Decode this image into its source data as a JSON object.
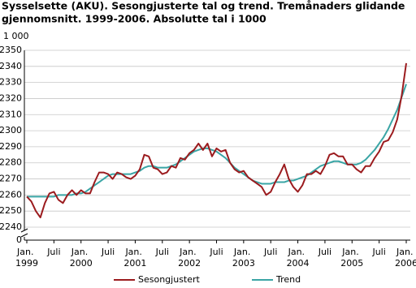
{
  "chart_data": {
    "type": "line",
    "title": [
      "Sysselsette (AKU).  Sesongjusterte tal og trend. Tremånaders glidande",
      "gjennomsnitt. 1999-2006. Absolutte tal i 1000"
    ],
    "y_unit": "1 000",
    "categories": [
      "Jan. 1999",
      null,
      null,
      null,
      null,
      null,
      "Juli",
      null,
      null,
      null,
      null,
      null,
      "Jan. 2000",
      null,
      null,
      null,
      null,
      null,
      "Juli",
      null,
      null,
      null,
      null,
      null,
      "Jan. 2001",
      null,
      null,
      null,
      null,
      null,
      "Juli",
      null,
      null,
      null,
      null,
      null,
      "Jan. 2002",
      null,
      null,
      null,
      null,
      null,
      "Juli",
      null,
      null,
      null,
      null,
      null,
      "Jan. 2003",
      null,
      null,
      null,
      null,
      null,
      "Juli",
      null,
      null,
      null,
      null,
      null,
      "Jan. 2004",
      null,
      null,
      null,
      null,
      null,
      "Juli",
      null,
      null,
      null,
      null,
      null,
      "Jan. 2005",
      null,
      null,
      null,
      null,
      null,
      "Juli",
      null,
      null,
      null,
      null,
      null,
      "Jan. 2006"
    ],
    "series": [
      {
        "name": "Sesongjustert",
        "color": "#9b1b1e",
        "values": [
          2259,
          2256,
          2250,
          2246,
          2255,
          2261,
          2262,
          2257,
          2255,
          2260,
          2263,
          2260,
          2263,
          2261,
          2261,
          2268,
          2274,
          2274,
          2273,
          2270,
          2274,
          2273,
          2271,
          2270,
          2272,
          2276,
          2285,
          2284,
          2277,
          2276,
          2273,
          2274,
          2278,
          2277,
          2283,
          2282,
          2286,
          2288,
          2292,
          2288,
          2292,
          2284,
          2289,
          2287,
          2288,
          2280,
          2276,
          2274,
          2275,
          2271,
          2269,
          2267,
          2265,
          2260,
          2262,
          2268,
          2273,
          2279,
          2270,
          2265,
          2262,
          2266,
          2273,
          2273,
          2275,
          2273,
          2278,
          2285,
          2286,
          2284,
          2284,
          2279,
          2279,
          2276,
          2274,
          2278,
          2278,
          2283,
          2287,
          2293,
          2294,
          2299,
          2307,
          2322,
          2342
        ]
      },
      {
        "name": "Trend",
        "color": "#3aa5a5",
        "values": [
          2259,
          2259,
          2259,
          2259,
          2259,
          2259,
          2259,
          2260,
          2260,
          2260,
          2260,
          2261,
          2261,
          2262,
          2264,
          2266,
          2268,
          2270,
          2272,
          2273,
          2273,
          2273,
          2273,
          2273,
          2274,
          2275,
          2277,
          2278,
          2278,
          2277,
          2277,
          2277,
          2278,
          2279,
          2281,
          2283,
          2285,
          2287,
          2288,
          2289,
          2289,
          2288,
          2287,
          2285,
          2283,
          2280,
          2277,
          2275,
          2273,
          2271,
          2269,
          2268,
          2267,
          2267,
          2267,
          2268,
          2268,
          2268,
          2269,
          2269,
          2270,
          2271,
          2272,
          2274,
          2276,
          2278,
          2279,
          2280,
          2281,
          2281,
          2280,
          2279,
          2279,
          2279,
          2280,
          2282,
          2285,
          2288,
          2292,
          2296,
          2301,
          2307,
          2313,
          2321,
          2329
        ]
      }
    ],
    "ylim": [
      2240,
      2350
    ],
    "yticks": [
      2240,
      2250,
      2260,
      2270,
      2280,
      2290,
      2300,
      2310,
      2320,
      2330,
      2340,
      2350
    ],
    "axis_break_tick": 0,
    "grid": true,
    "legend": "bottom"
  }
}
